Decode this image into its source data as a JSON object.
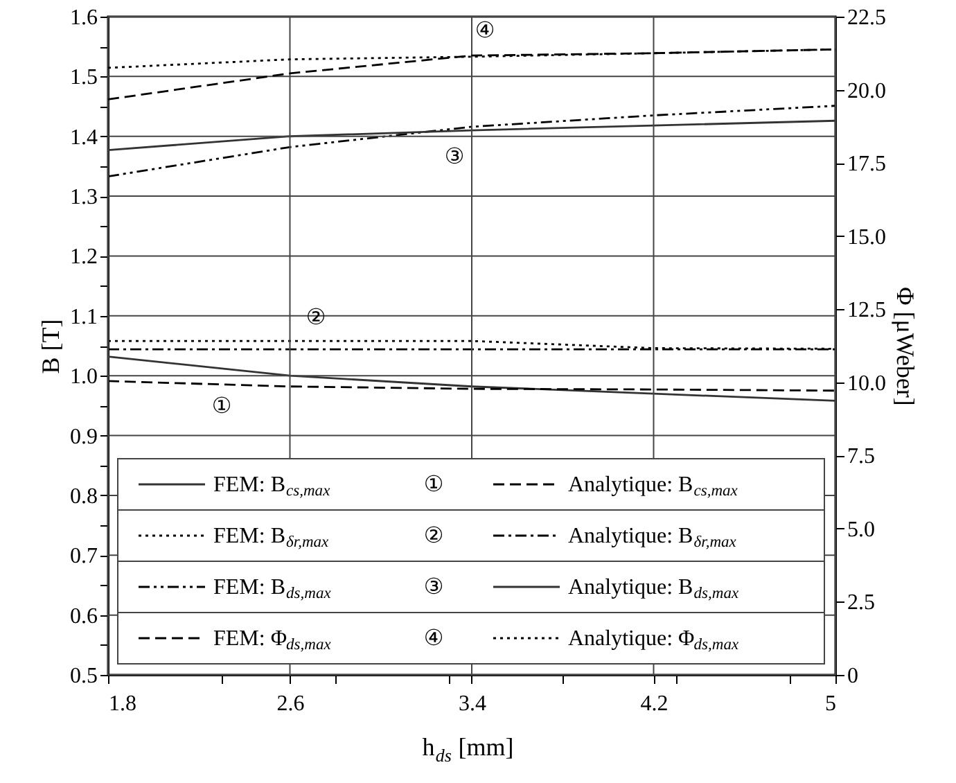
{
  "chart_data": {
    "type": "line",
    "xlabel": "h$_{ds}$ [mm]",
    "ylabel": "B [T]",
    "y2label": "Φ [μWeber]",
    "xlim": [
      1.8,
      5
    ],
    "xticks": [
      {
        "value": 1.8,
        "label": "1.8"
      },
      {
        "value": 2.3,
        "label": null
      },
      {
        "value": 2.6,
        "label": "2.6"
      },
      {
        "value": 2.8,
        "label": null
      },
      {
        "value": 3.3,
        "label": null
      },
      {
        "value": 3.4,
        "label": "3.4"
      },
      {
        "value": 3.8,
        "label": null
      },
      {
        "value": 4.2,
        "label": "4.2"
      },
      {
        "value": 4.3,
        "label": null
      },
      {
        "value": 4.8,
        "label": null
      },
      {
        "value": 5,
        "label": "5"
      }
    ],
    "ylim": [
      0.5,
      1.6
    ],
    "yticks": [
      {
        "value": 0.5,
        "label": "0.5"
      },
      {
        "value": 0.55,
        "label": null
      },
      {
        "value": 0.6,
        "label": "0.6"
      },
      {
        "value": 0.65,
        "label": null
      },
      {
        "value": 0.7,
        "label": "0.7"
      },
      {
        "value": 0.75,
        "label": null
      },
      {
        "value": 0.8,
        "label": "0.8"
      },
      {
        "value": 0.85,
        "label": null
      },
      {
        "value": 0.9,
        "label": "0.9"
      },
      {
        "value": 0.95,
        "label": null
      },
      {
        "value": 1.0,
        "label": "1.0"
      },
      {
        "value": 1.05,
        "label": null
      },
      {
        "value": 1.1,
        "label": "1.1"
      },
      {
        "value": 1.15,
        "label": null
      },
      {
        "value": 1.2,
        "label": "1.2"
      },
      {
        "value": 1.25,
        "label": null
      },
      {
        "value": 1.3,
        "label": "1.3"
      },
      {
        "value": 1.35,
        "label": null
      },
      {
        "value": 1.4,
        "label": "1.4"
      },
      {
        "value": 1.45,
        "label": null
      },
      {
        "value": 1.5,
        "label": "1.5"
      },
      {
        "value": 1.55,
        "label": null
      },
      {
        "value": 1.6,
        "label": "1.6"
      }
    ],
    "y2lim": [
      0,
      22.5
    ],
    "y2ticks": [
      {
        "value": 0,
        "label": "0"
      },
      {
        "value": 2.5,
        "label": "2.5"
      },
      {
        "value": 5,
        "label": "5.0"
      },
      {
        "value": 7.5,
        "label": "7.5"
      },
      {
        "value": 10,
        "label": "10.0"
      },
      {
        "value": 12.5,
        "label": "12.5"
      },
      {
        "value": 15,
        "label": "15.0"
      },
      {
        "value": 17.5,
        "label": "17.5"
      },
      {
        "value": 20,
        "label": "20.0"
      },
      {
        "value": 22.5,
        "label": "22.5"
      }
    ],
    "grid": true,
    "legend": "bottom",
    "marker": "none",
    "x": [
      1.8,
      2.6,
      3.4,
      4.2,
      5
    ],
    "series": [
      {
        "name": "FEM: B$_{cs,max}$",
        "color": "#333333",
        "line_style": "solid",
        "values": [
          1.032,
          1.0,
          0.982,
          0.97,
          0.958
        ]
      },
      {
        "name": "Analytique: B$_{cs,max}$",
        "color": "#000000",
        "line_style": "dashed",
        "values": [
          0.991,
          0.982,
          0.978,
          0.977,
          0.975
        ]
      },
      {
        "name": "FEM: B$_{δr,max}$",
        "color": "#000000",
        "line_style": "dotted",
        "values": [
          1.058,
          1.058,
          1.058,
          1.046,
          1.045
        ]
      },
      {
        "name": "Analytique: B$_{δr,max}$",
        "color": "#000000",
        "line_style": "dashdot",
        "values": [
          1.044,
          1.044,
          1.044,
          1.044,
          1.044
        ]
      },
      {
        "name": "FEM: B$_{ds,max}$",
        "color": "#000000",
        "line_style": "dashdotdot",
        "values": [
          1.333,
          1.382,
          1.416,
          1.435,
          1.451
        ]
      },
      {
        "name": "Analytique: B$_{ds,max}$",
        "color": "#333333",
        "line_style": "solid",
        "values": [
          1.377,
          1.4,
          1.41,
          1.418,
          1.426
        ]
      },
      {
        "name": "FEM: Φ$_{ds,max}$",
        "color": "#000000",
        "line_style": "dashed",
        "axis": "y2",
        "values": [
          19.67,
          20.56,
          21.17,
          21.25,
          21.38
        ]
      },
      {
        "name": "Analytique: Φ$_{ds,max}$",
        "color": "#000000",
        "line_style": "dotted",
        "axis": "y2",
        "values": [
          20.75,
          21.04,
          21.13,
          21.25,
          21.38
        ]
      }
    ],
    "annotations": [
      "①",
      "②",
      "③",
      "④"
    ]
  }
}
